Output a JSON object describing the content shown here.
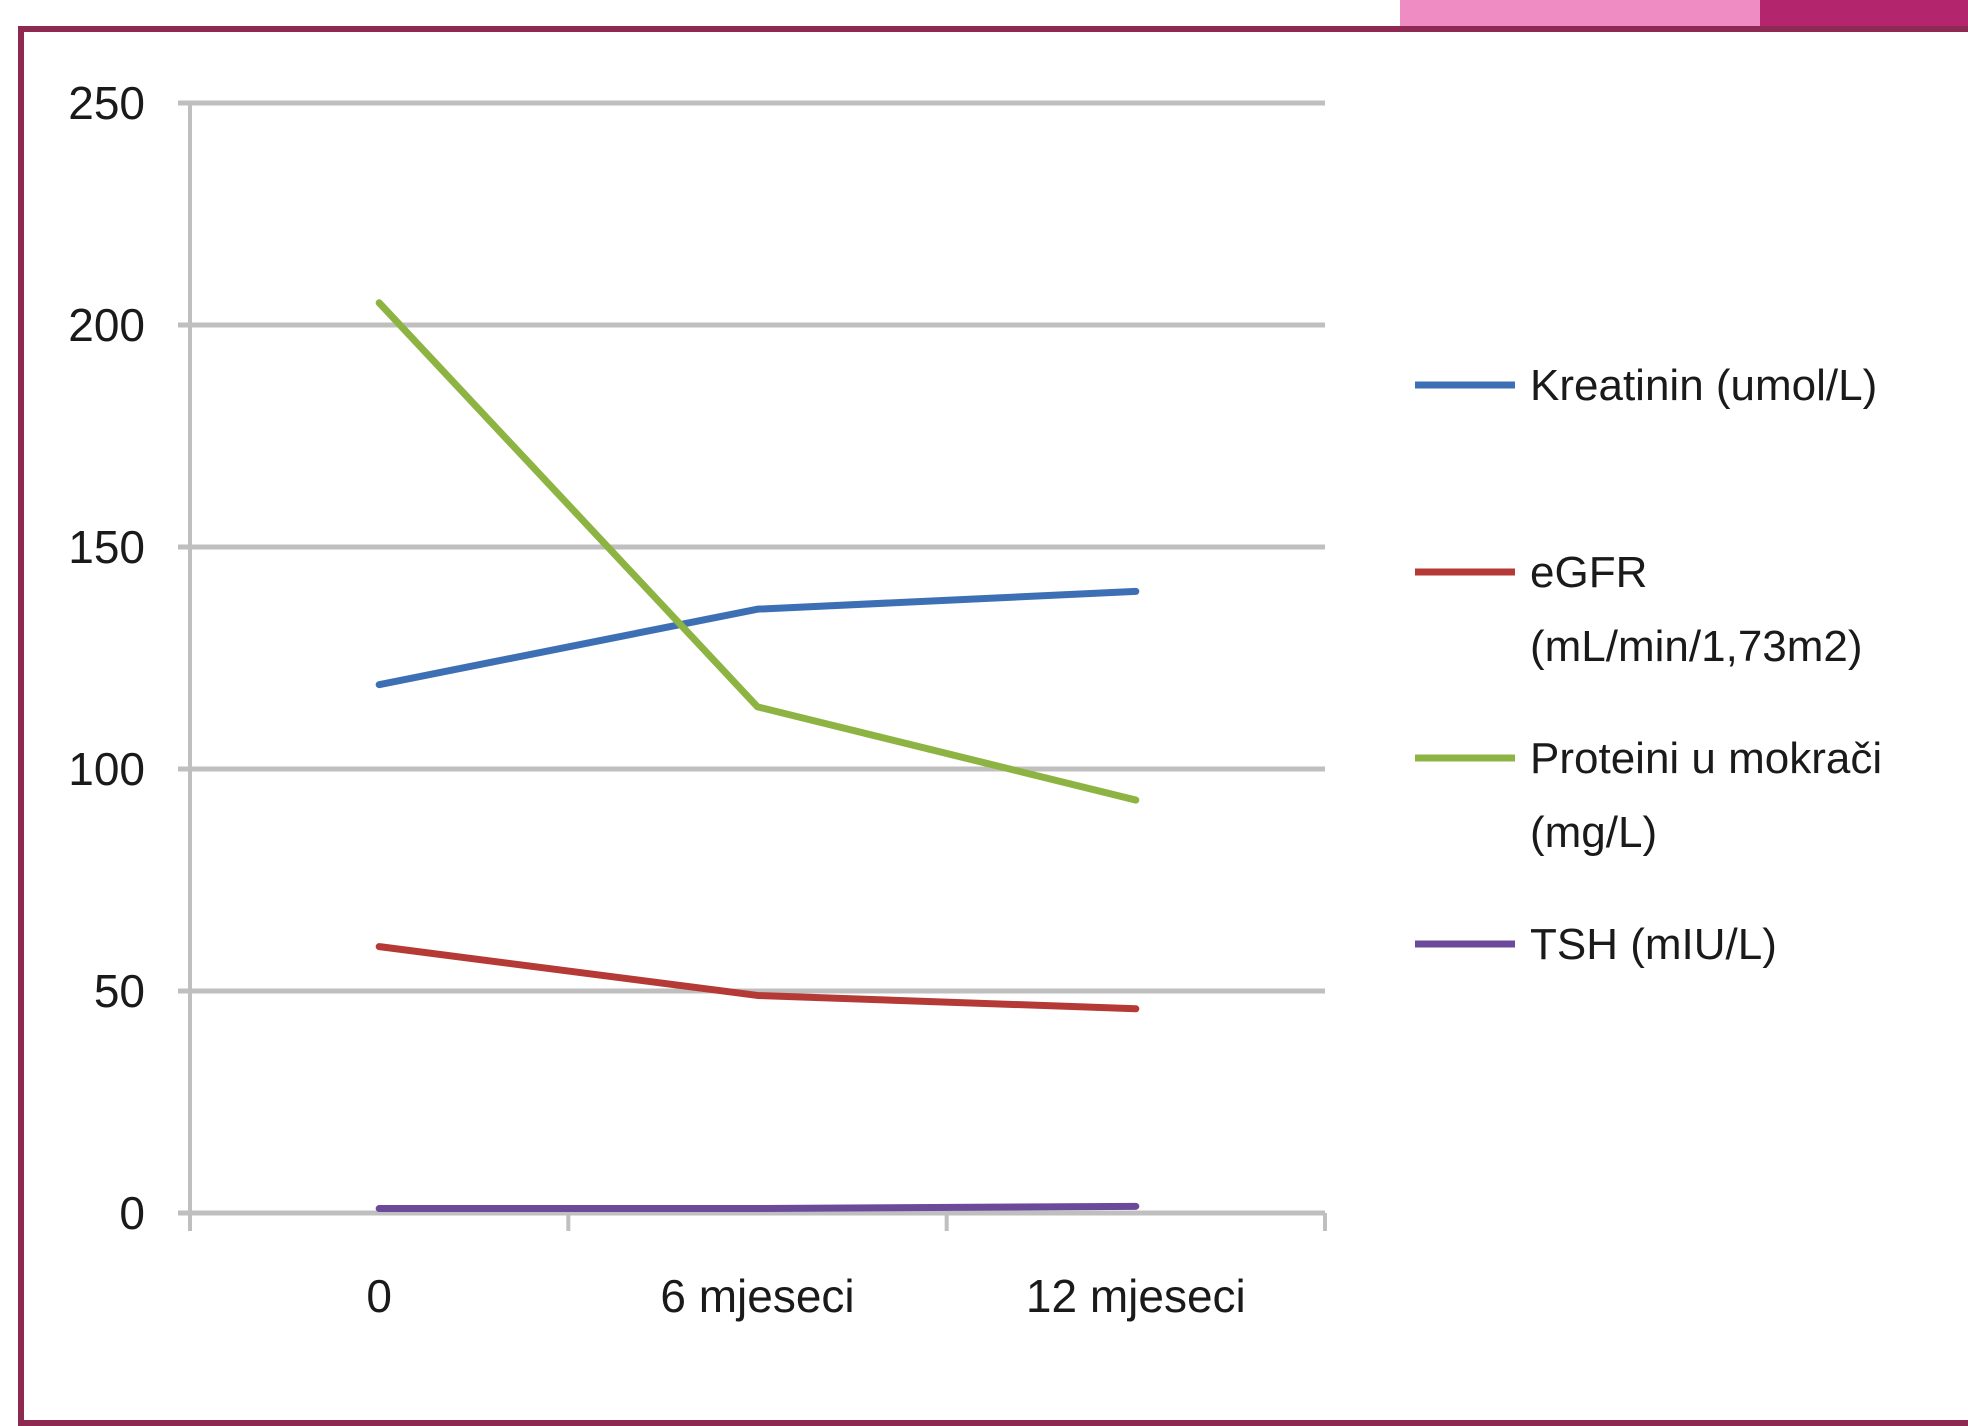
{
  "colors": {
    "accent_light": "#ef8cc3",
    "accent_dark": "#b3266e",
    "gridline": "#bfbfbf",
    "axis": "#bfbfbf"
  },
  "chart_data": {
    "type": "line",
    "title": "",
    "xlabel": "",
    "ylabel": "",
    "categories": [
      "0",
      "6 mjeseci",
      "12 mjeseci"
    ],
    "ylim": [
      0,
      250
    ],
    "yticks": [
      0,
      50,
      100,
      150,
      200,
      250
    ],
    "grid": true,
    "legend_position": "right",
    "series": [
      {
        "name": "Kreatinin (umol/L)",
        "color": "#3d6fb4",
        "values": [
          119,
          136,
          140
        ]
      },
      {
        "name": "eGFR (mL/min/1,73m2)",
        "color": "#b53a36",
        "values": [
          60,
          49,
          46
        ]
      },
      {
        "name": "Proteini u mokrači (mg/L)",
        "color": "#8db443",
        "values": [
          205,
          114,
          93
        ]
      },
      {
        "name": "TSH (mIU/L)",
        "color": "#6b4a9c",
        "values": [
          1,
          1,
          1.5
        ]
      }
    ]
  }
}
